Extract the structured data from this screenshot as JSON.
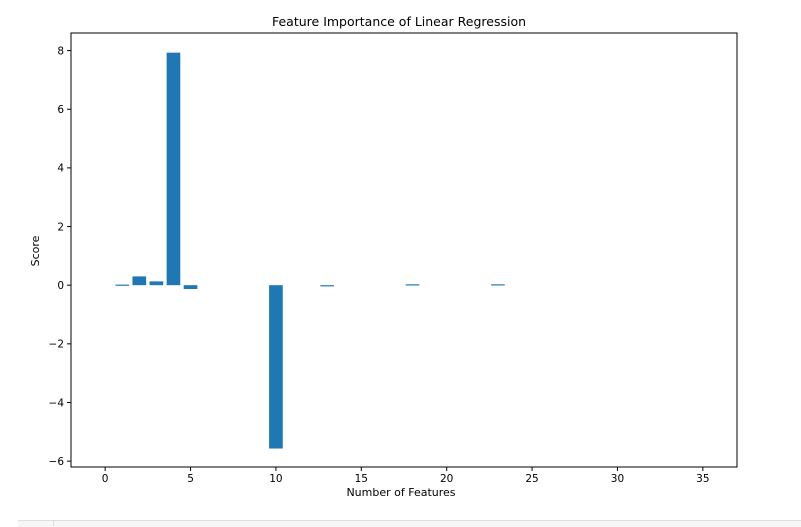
{
  "chart_data": {
    "type": "bar",
    "title": "Feature Importance of Linear Regression",
    "xlabel": "Number of Features",
    "ylabel": "Score",
    "xlim": [
      -2,
      37
    ],
    "ylim": [
      -6.2,
      8.6
    ],
    "xticks": [
      0,
      5,
      10,
      15,
      20,
      25,
      30,
      35
    ],
    "yticks": [
      -6,
      -4,
      -2,
      0,
      2,
      4,
      6,
      8
    ],
    "ytick_labels": [
      "−6",
      "−4",
      "−2",
      "0",
      "2",
      "4",
      "6",
      "8"
    ],
    "grid": false,
    "bar_color": "#1f77b4",
    "x": [
      0,
      1,
      2,
      3,
      4,
      5,
      6,
      7,
      8,
      9,
      10,
      11,
      12,
      13,
      14,
      15,
      16,
      17,
      18,
      19,
      20,
      21,
      22,
      23,
      24,
      25,
      26,
      27,
      28,
      29,
      30,
      31,
      32,
      33,
      34,
      35
    ],
    "values": [
      0,
      0.02,
      0.3,
      0.13,
      7.93,
      -0.13,
      0,
      0,
      0,
      0,
      -5.57,
      0,
      0,
      -0.03,
      0,
      0,
      0,
      0,
      0.03,
      0,
      0,
      0,
      0,
      0.03,
      0,
      0,
      0,
      0,
      0,
      0,
      0,
      0,
      0,
      0,
      0,
      0
    ]
  }
}
